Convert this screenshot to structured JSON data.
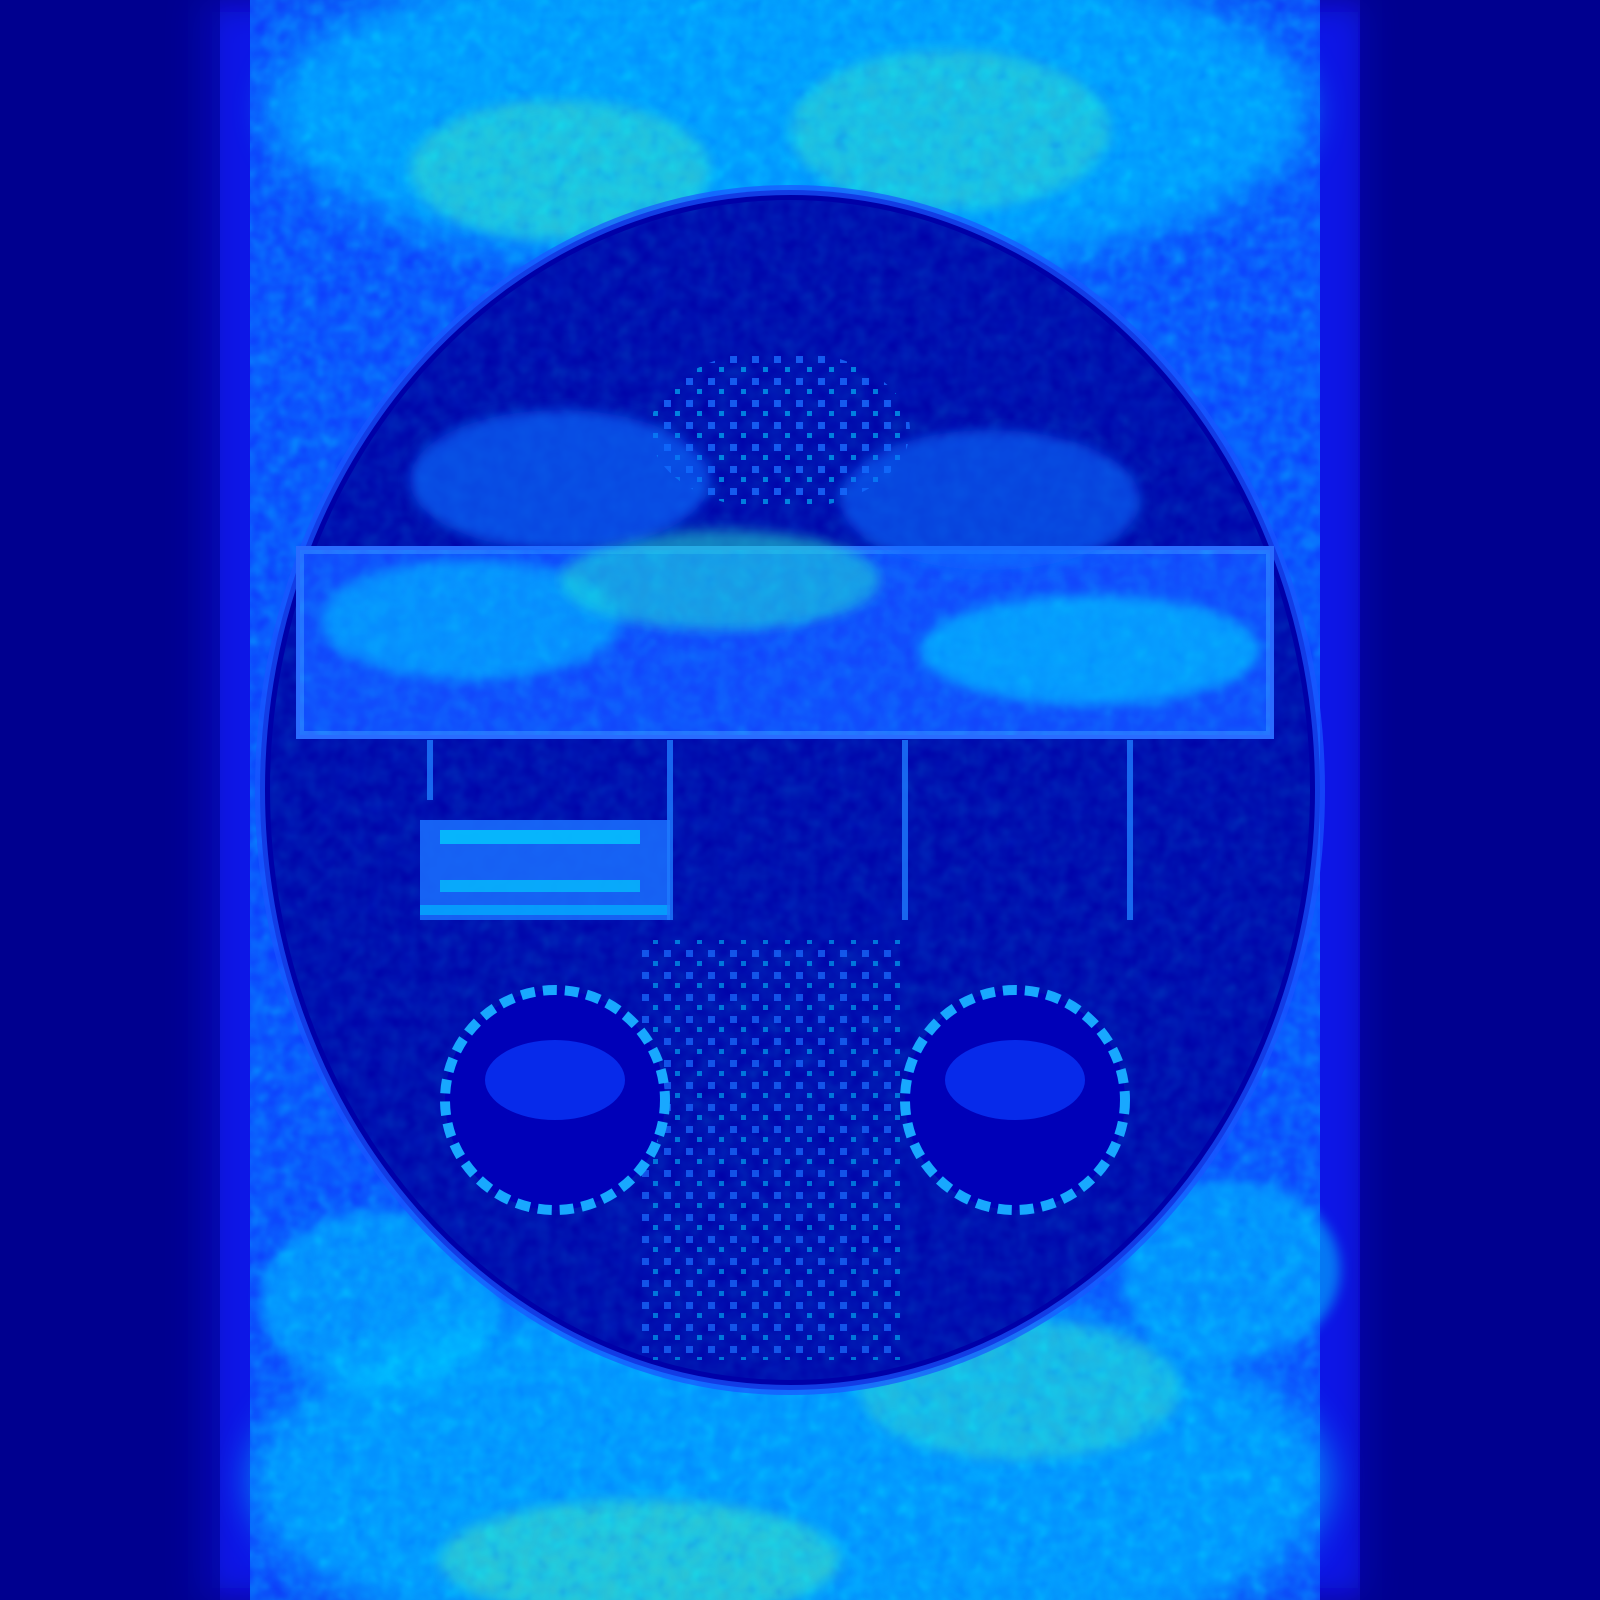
{
  "image": {
    "kind": "pseudocolor reconstruction map",
    "colormap": "jet",
    "colors": {
      "background": "#00008f",
      "low": "#0000ff",
      "mid": "#00a0ff",
      "high": "#00ffff",
      "peak": "#80ff80"
    }
  }
}
